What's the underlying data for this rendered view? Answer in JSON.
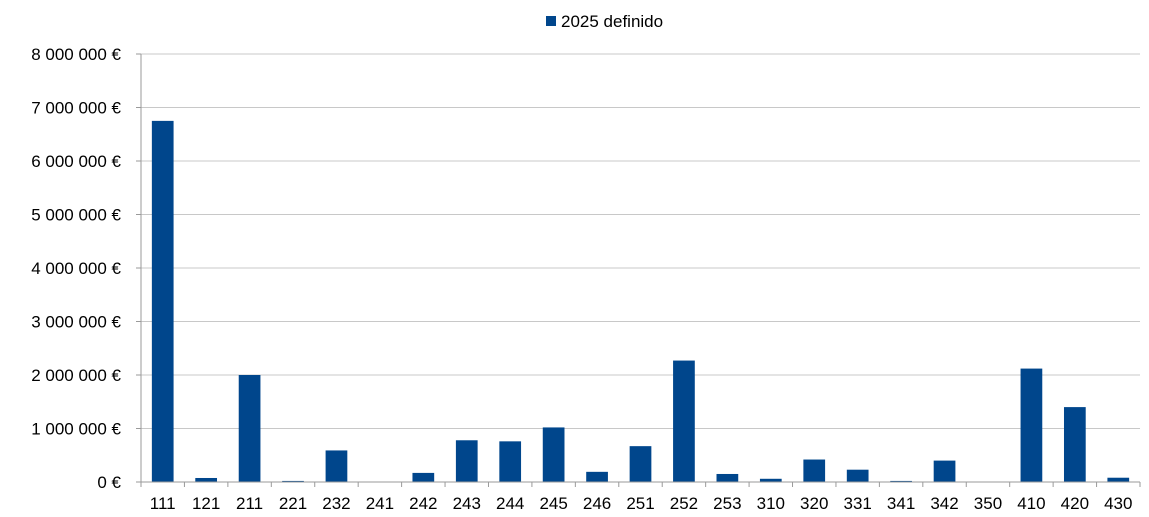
{
  "chart_data": {
    "type": "bar",
    "legend": {
      "position": "top",
      "entries": [
        "2025 definido"
      ]
    },
    "series": [
      {
        "name": "2025 definido",
        "color": "#00468C",
        "values": [
          6750000,
          75000,
          2000000,
          20000,
          590000,
          0,
          170000,
          780000,
          760000,
          1020000,
          190000,
          670000,
          2270000,
          150000,
          60000,
          420000,
          230000,
          20000,
          400000,
          0,
          2120000,
          1400000,
          80000
        ]
      }
    ],
    "categories": [
      "111",
      "121",
      "211",
      "221",
      "232",
      "241",
      "242",
      "243",
      "244",
      "245",
      "246",
      "251",
      "252",
      "253",
      "310",
      "320",
      "331",
      "341",
      "342",
      "350",
      "410",
      "420",
      "430"
    ],
    "ylim": [
      0,
      8000000
    ],
    "yticks": [
      0,
      1000000,
      2000000,
      3000000,
      4000000,
      5000000,
      6000000,
      7000000,
      8000000
    ],
    "ytick_labels": [
      "0 €",
      "1 000 000 €",
      "2 000 000 €",
      "3 000 000 €",
      "4 000 000 €",
      "5 000 000 €",
      "6 000 000 €",
      "7 000 000 €",
      "8 000 000 €"
    ],
    "grid": true,
    "gridline_color": "#C8C8C8",
    "axis_color": "#9A9A9A"
  }
}
